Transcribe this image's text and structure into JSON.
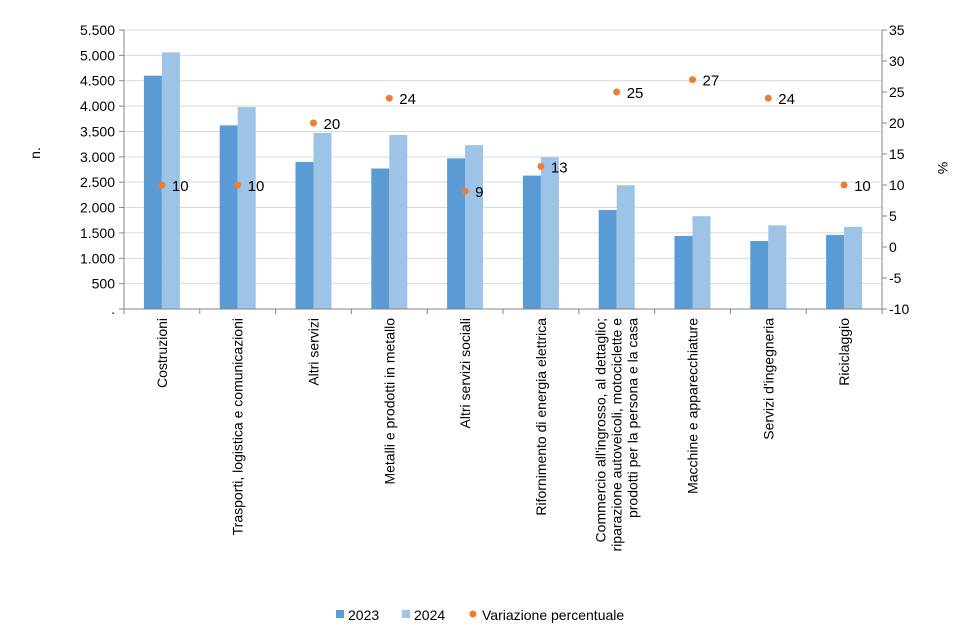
{
  "chart_data": {
    "type": "bar",
    "categories": [
      [
        "Costruzioni"
      ],
      [
        "Trasporti, logistica e comunicazioni"
      ],
      [
        "Altri servizi"
      ],
      [
        "Metalli e prodotti in metallo"
      ],
      [
        "Altri servizi sociali"
      ],
      [
        "Rifornimento di energia elettrica"
      ],
      [
        "Commercio all'ingrosso, al dettaglio;",
        "riparazione autoveicoli, motociclette e",
        "prodotti per la persona e la casa"
      ],
      [
        "Macchine e apparecchiature"
      ],
      [
        "Servizi d'ingegneria"
      ],
      [
        "Riciclaggio"
      ]
    ],
    "series": [
      {
        "name": "2023",
        "axis": "left",
        "color": "#5B9BD5",
        "values": [
          4600,
          3620,
          2900,
          2770,
          2970,
          2630,
          1950,
          1440,
          1340,
          1460
        ]
      },
      {
        "name": "2024",
        "axis": "left",
        "color": "#9DC3E6",
        "values": [
          5060,
          3980,
          3470,
          3430,
          3230,
          2990,
          2440,
          1830,
          1650,
          1620
        ]
      },
      {
        "name": "Variazione percentuale",
        "axis": "right",
        "type": "scatter",
        "color": "#ED7D31",
        "values": [
          10,
          10,
          20,
          24,
          9,
          13,
          25,
          27,
          24,
          10
        ],
        "labels": [
          "10",
          "10",
          "20",
          "24",
          "9",
          "13",
          "25",
          "27",
          "24",
          "10"
        ]
      }
    ],
    "ylabel": "n.",
    "y2label": "%",
    "ylim": [
      0,
      5500
    ],
    "y2lim": [
      -10,
      35
    ],
    "yticks": [
      "5.500",
      "5.000",
      "4.500",
      "4.000",
      "3.500",
      "3.000",
      "2.500",
      "2.000",
      "1.500",
      "1.000",
      "500",
      "."
    ],
    "y2ticks": [
      "35",
      "30",
      "25",
      "20",
      "15",
      "10",
      "5",
      "0",
      "-5",
      "-10"
    ],
    "grid": true,
    "legend_position": "bottom"
  }
}
